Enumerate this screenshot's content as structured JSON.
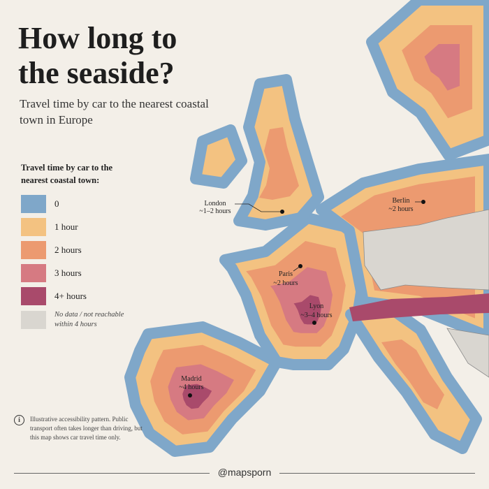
{
  "header": {
    "title": "How long to the seaside?",
    "subtitle": "Travel time by car to the nearest coastal town in Europe"
  },
  "legend": {
    "title": "Travel time by car to the nearest coastal town:",
    "items": [
      {
        "label": "0",
        "color": "#7fa7c9"
      },
      {
        "label": "1 hour",
        "color": "#f3c281"
      },
      {
        "label": "2 hours",
        "color": "#ec9a70"
      },
      {
        "label": "3 hours",
        "color": "#d67a82"
      },
      {
        "label": "4+ hours",
        "color": "#a94a6b"
      },
      {
        "label": "No data / not reachable within 4 hours",
        "color": "#d9d6d0"
      }
    ]
  },
  "cities": [
    {
      "name": "London",
      "time": "~1–2 hours"
    },
    {
      "name": "Berlin",
      "time": "~2 hours"
    },
    {
      "name": "Paris",
      "time": "~2 hours"
    },
    {
      "name": "Lyon",
      "time": "~3–4 hours"
    },
    {
      "name": "Madrid",
      "time": "~4 hours"
    }
  ],
  "note": "Illustrative accessibility pattern. Public transport often takes longer than driving, but this map shows car travel time only.",
  "credit": "@mapsporn"
}
